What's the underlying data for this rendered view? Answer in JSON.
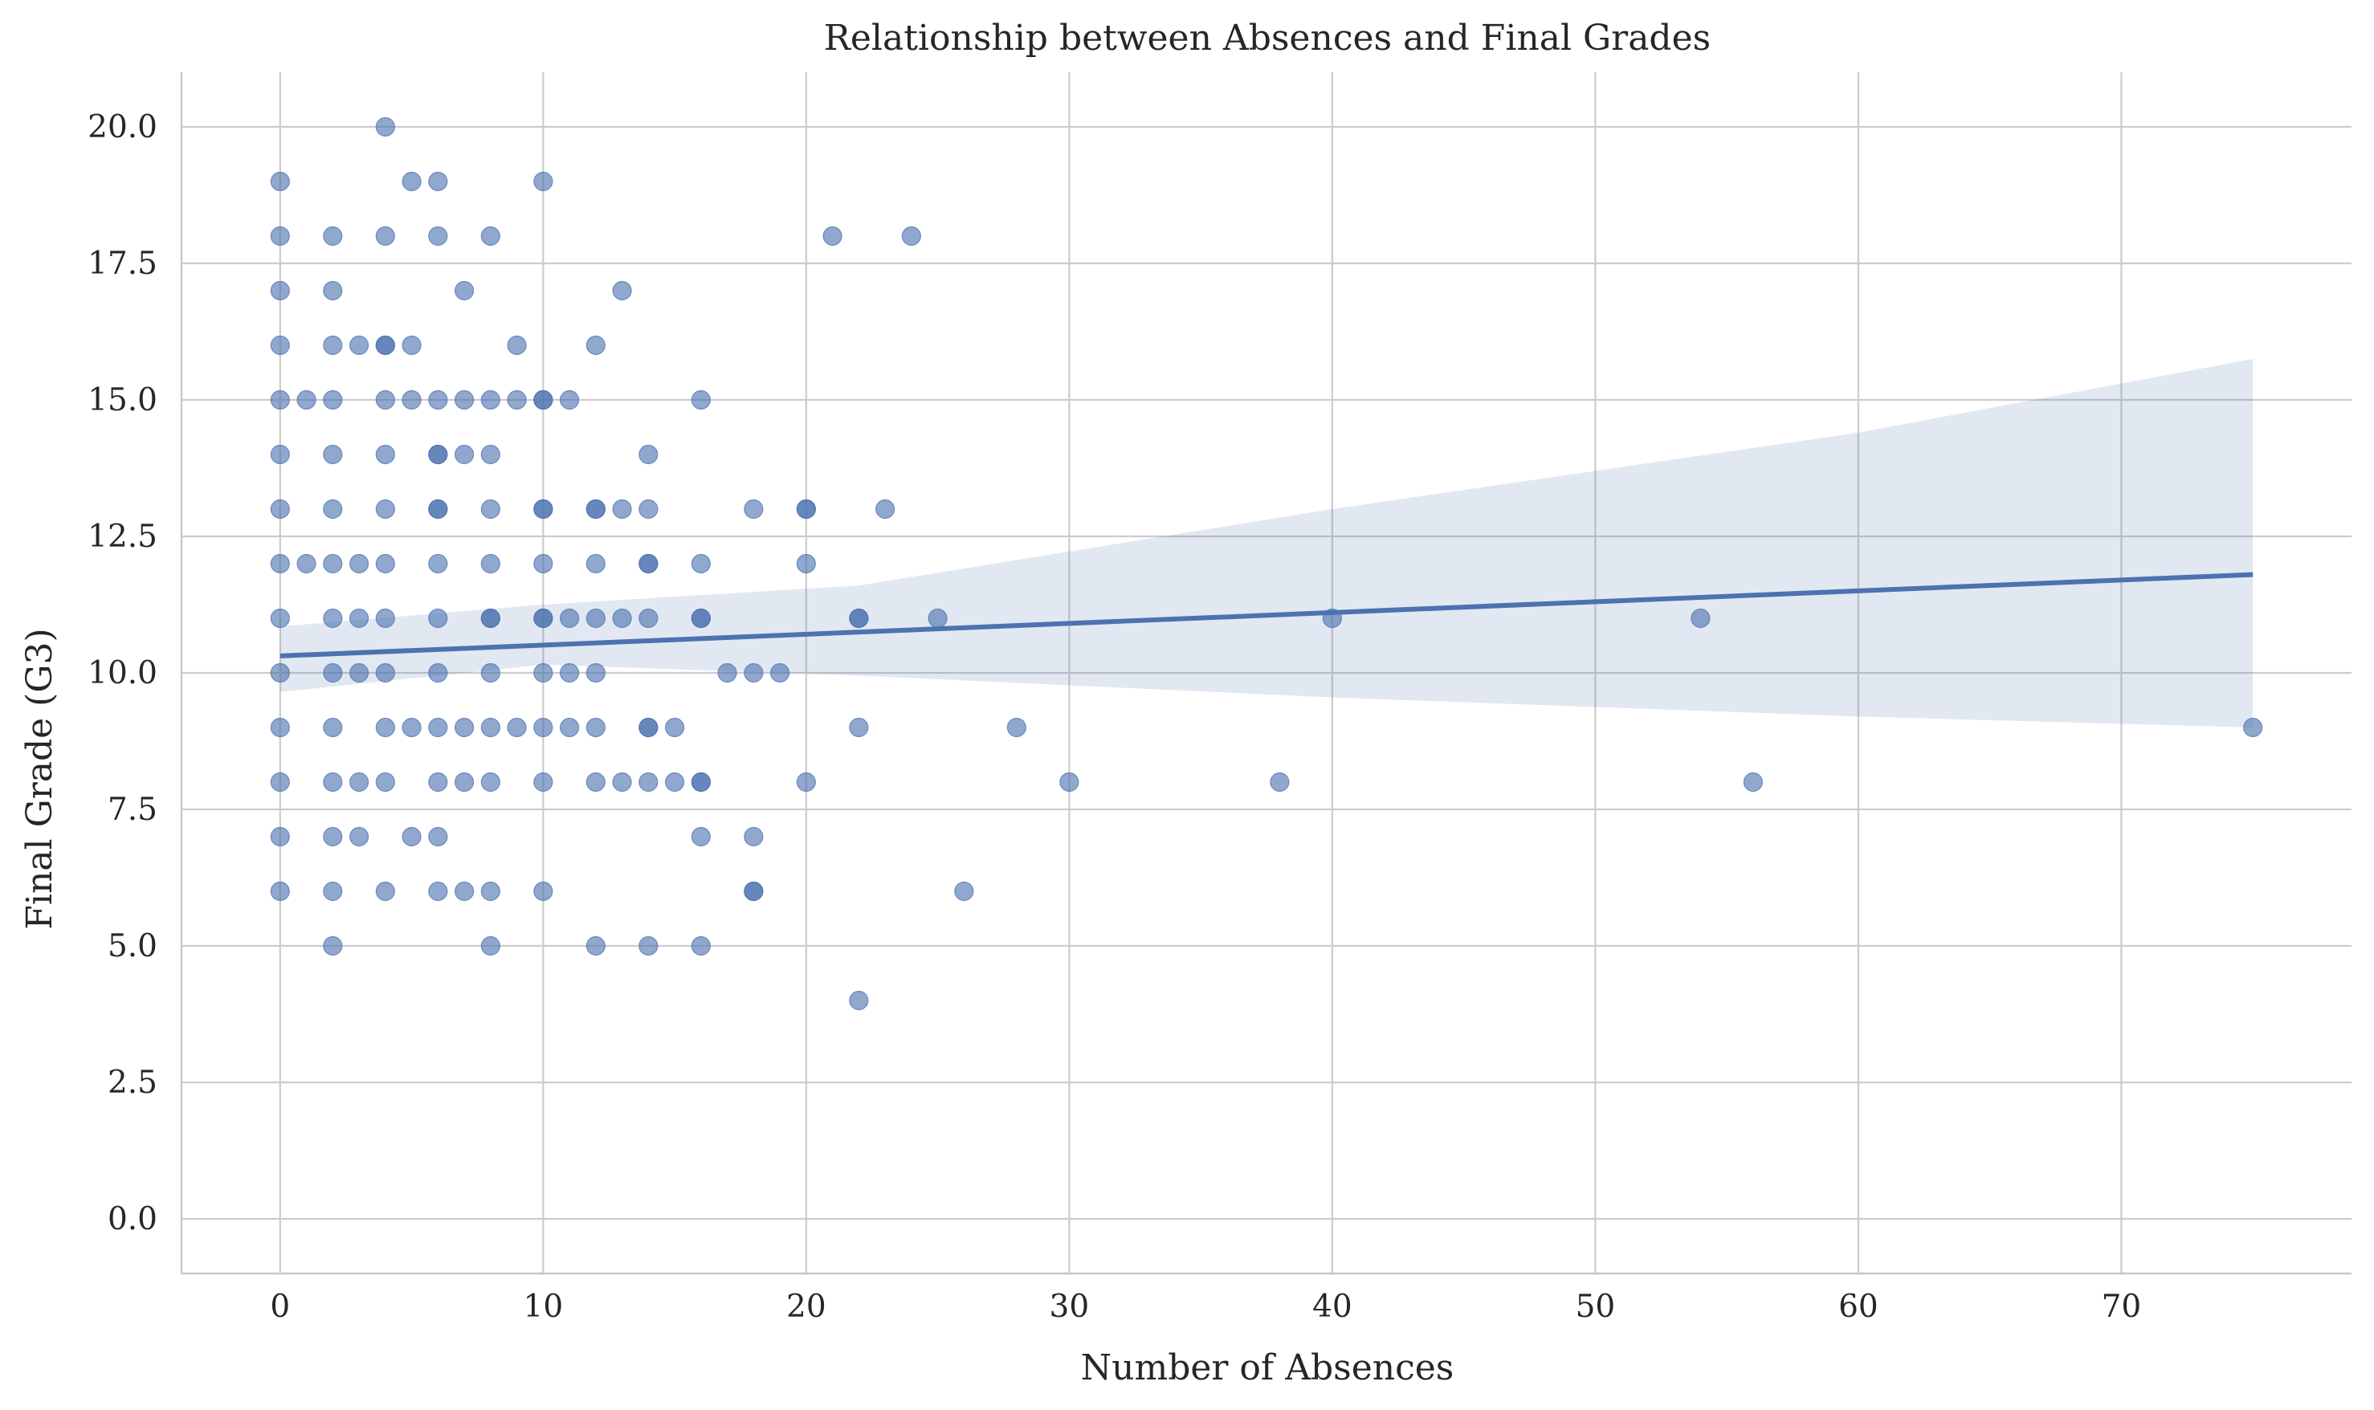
{
  "chart_data": {
    "type": "scatter",
    "title": "Relationship between Absences and Final Grades",
    "xlabel": "Number of Absences",
    "ylabel": "Final Grade (G3)",
    "xlim": [
      -3.75,
      78.75
    ],
    "ylim": [
      -1.0,
      21.0
    ],
    "xticks": [
      0,
      10,
      20,
      30,
      40,
      50,
      60,
      70
    ],
    "yticks": [
      0.0,
      2.5,
      5.0,
      7.5,
      10.0,
      12.5,
      15.0,
      17.5,
      20.0
    ],
    "ytick_labels": [
      "0.0",
      "2.5",
      "5.0",
      "7.5",
      "10.0",
      "12.5",
      "15.0",
      "17.5",
      "20.0"
    ],
    "grid": true,
    "colors": {
      "points": "#4c72b0",
      "line": "#4c72b0",
      "band": "#4c72b0"
    },
    "x": [
      0,
      0,
      0,
      0,
      0,
      0,
      0,
      0,
      0,
      0,
      0,
      0,
      0,
      0,
      1,
      1,
      2,
      2,
      2,
      2,
      2,
      2,
      2,
      2,
      2,
      2,
      2,
      2,
      2,
      2,
      3,
      3,
      3,
      3,
      3,
      3,
      4,
      4,
      4,
      4,
      4,
      4,
      4,
      4,
      4,
      4,
      4,
      4,
      4,
      5,
      5,
      5,
      5,
      5,
      6,
      6,
      6,
      6,
      6,
      6,
      6,
      6,
      6,
      6,
      6,
      6,
      6,
      6,
      7,
      7,
      7,
      7,
      7,
      7,
      8,
      8,
      8,
      8,
      8,
      8,
      8,
      8,
      8,
      8,
      8,
      8,
      9,
      9,
      9,
      10,
      10,
      10,
      10,
      10,
      10,
      10,
      10,
      10,
      10,
      10,
      10,
      11,
      11,
      11,
      11,
      12,
      12,
      12,
      12,
      12,
      12,
      12,
      12,
      12,
      13,
      13,
      13,
      13,
      14,
      14,
      14,
      14,
      14,
      14,
      14,
      14,
      14,
      15,
      15,
      16,
      16,
      16,
      16,
      16,
      16,
      16,
      16,
      17,
      18,
      18,
      18,
      18,
      18,
      19,
      20,
      20,
      20,
      20,
      21,
      22,
      22,
      22,
      22,
      23,
      24,
      25,
      26,
      28,
      30,
      38,
      40,
      54,
      56,
      75
    ],
    "y": [
      19,
      18,
      17,
      16,
      15,
      14,
      13,
      12,
      11,
      10,
      9,
      8,
      7,
      6,
      15,
      12,
      18,
      17,
      16,
      15,
      14,
      13,
      12,
      11,
      10,
      9,
      8,
      7,
      6,
      5,
      16,
      12,
      11,
      10,
      8,
      7,
      20,
      18,
      16,
      15,
      14,
      13,
      12,
      11,
      10,
      9,
      8,
      6,
      16,
      19,
      16,
      9,
      7,
      15,
      19,
      18,
      15,
      14,
      13,
      12,
      11,
      10,
      9,
      8,
      7,
      6,
      14,
      13,
      17,
      15,
      14,
      9,
      8,
      6,
      18,
      14,
      13,
      12,
      11,
      10,
      9,
      8,
      6,
      5,
      15,
      11,
      16,
      15,
      9,
      19,
      15,
      13,
      12,
      11,
      10,
      9,
      8,
      6,
      11,
      13,
      15,
      15,
      11,
      10,
      9,
      16,
      13,
      12,
      11,
      10,
      9,
      8,
      5,
      13,
      17,
      13,
      8,
      11,
      14,
      13,
      12,
      11,
      9,
      8,
      5,
      12,
      9,
      9,
      8,
      15,
      12,
      11,
      8,
      7,
      5,
      11,
      8,
      10,
      13,
      10,
      7,
      6,
      6,
      10,
      13,
      12,
      8,
      13,
      18,
      11,
      9,
      4,
      11,
      13,
      18,
      11,
      6,
      9,
      8,
      8,
      11,
      11,
      8,
      9
    ],
    "regression": {
      "x": [
        0,
        75
      ],
      "y": [
        10.31,
        11.8
      ],
      "ci_x": [
        0,
        10,
        22,
        40,
        60,
        75
      ],
      "ci_upper": [
        10.85,
        11.25,
        11.6,
        13.0,
        14.4,
        15.75
      ],
      "ci_lower": [
        9.65,
        10.15,
        9.95,
        9.55,
        9.2,
        9.0
      ]
    }
  }
}
